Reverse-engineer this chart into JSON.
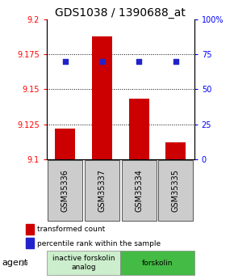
{
  "title": "GDS1038 / 1390688_at",
  "samples": [
    "GSM35336",
    "GSM35337",
    "GSM35334",
    "GSM35335"
  ],
  "bar_values": [
    9.122,
    9.188,
    9.143,
    9.112
  ],
  "dot_values": [
    70,
    70,
    70,
    70
  ],
  "ylim_left": [
    9.1,
    9.2
  ],
  "ylim_right": [
    0,
    100
  ],
  "yticks_left": [
    9.1,
    9.125,
    9.15,
    9.175,
    9.2
  ],
  "yticks_right": [
    0,
    25,
    50,
    75,
    100
  ],
  "ytick_labels_left": [
    "9.1",
    "9.125",
    "9.15",
    "9.175",
    "9.2"
  ],
  "ytick_labels_right": [
    "0",
    "25",
    "50",
    "75",
    "100%"
  ],
  "bar_color": "#cc0000",
  "dot_color": "#2222cc",
  "bar_bottom": 9.1,
  "groups": [
    {
      "label": "inactive forskolin\nanalog",
      "indices": [
        0,
        1
      ],
      "color": "#cceecc"
    },
    {
      "label": "forskolin",
      "indices": [
        2,
        3
      ],
      "color": "#44bb44"
    }
  ],
  "agent_label": "agent",
  "legend_bar_label": "transformed count",
  "legend_dot_label": "percentile rank within the sample",
  "title_fontsize": 10,
  "tick_fontsize": 7,
  "sample_fontsize": 7
}
